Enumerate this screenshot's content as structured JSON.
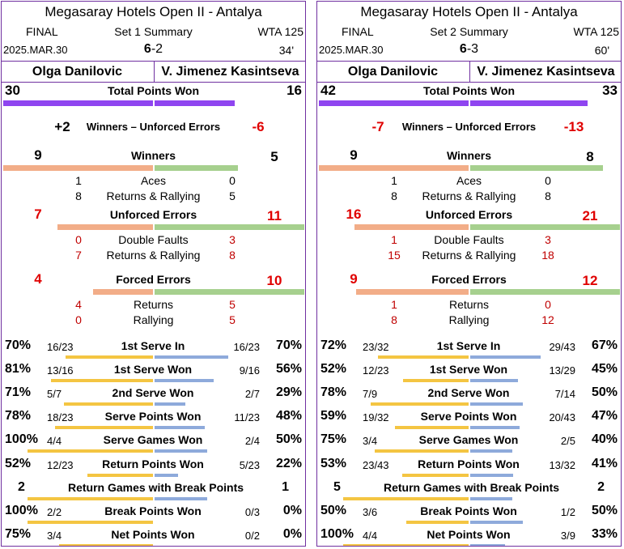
{
  "colors": {
    "purple": "#8f45f0",
    "orange": "#f2ad88",
    "green": "#a6d08e",
    "yellow": "#f4c542",
    "blue": "#8eaadb",
    "red": "#e00000",
    "border": "#7030a0"
  },
  "panels": [
    {
      "title": "Megasaray Hotels Open II - Antalya",
      "round": "FINAL",
      "set_label": "Set 1 Summary",
      "tour": "WTA 125",
      "date": "2025.MAR.30",
      "score_lead": "6",
      "score_rest": "-2",
      "duration": "34'",
      "p1": "Olga Danilovic",
      "p2": "V. Jimenez Kasintseva",
      "total": {
        "label": "Total Points Won",
        "p1": "30",
        "p2": "16",
        "p1n": 30,
        "p2n": 16
      },
      "diff": {
        "label": "Winners – Unforced Errors",
        "p1": "+2",
        "p2": "-6",
        "p1red": false,
        "p2red": true
      },
      "winners": {
        "label": "Winners",
        "p1": "9",
        "p2": "5",
        "p1n": 9,
        "p2n": 5,
        "subs": [
          {
            "label": "Aces",
            "p1": "1",
            "p2": "0"
          },
          {
            "label": "Returns & Rallying",
            "p1": "8",
            "p2": "5"
          }
        ]
      },
      "ue": {
        "label": "Unforced Errors",
        "p1": "7",
        "p2": "11",
        "p1n": 7,
        "p2n": 11,
        "subs": [
          {
            "label": "Double Faults",
            "p1": "0",
            "p2": "3"
          },
          {
            "label": "Returns & Rallying",
            "p1": "7",
            "p2": "8"
          }
        ]
      },
      "fe": {
        "label": "Forced Errors",
        "p1": "4",
        "p2": "10",
        "p1n": 4,
        "p2n": 10,
        "subs": [
          {
            "label": "Returns",
            "p1": "4",
            "p2": "5"
          },
          {
            "label": "Rallying",
            "p1": "0",
            "p2": "5"
          }
        ]
      },
      "stats": [
        {
          "label": "1st Serve In",
          "p1": "70%",
          "p1f": "16/23",
          "p2": "70%",
          "p2f": "16/23",
          "p1v": 0.7,
          "p2v": 0.7
        },
        {
          "label": "1st Serve Won",
          "p1": "81%",
          "p1f": "13/16",
          "p2": "56%",
          "p2f": "9/16",
          "p1v": 0.81,
          "p2v": 0.56
        },
        {
          "label": "2nd Serve Won",
          "p1": "71%",
          "p1f": "5/7",
          "p2": "29%",
          "p2f": "2/7",
          "p1v": 0.71,
          "p2v": 0.29
        },
        {
          "label": "Serve Points Won",
          "p1": "78%",
          "p1f": "18/23",
          "p2": "48%",
          "p2f": "11/23",
          "p1v": 0.78,
          "p2v": 0.48
        },
        {
          "label": "Serve Games Won",
          "p1": "100%",
          "p1f": "4/4",
          "p2": "50%",
          "p2f": "2/4",
          "p1v": 1.0,
          "p2v": 0.5
        },
        {
          "label": "Return Points Won",
          "p1": "52%",
          "p1f": "12/23",
          "p2": "22%",
          "p2f": "5/23",
          "p1v": 0.52,
          "p2v": 0.22
        },
        {
          "label": "Return Games with Break Points",
          "p1": "2",
          "p1f": "",
          "p2": "1",
          "p2f": "",
          "p1v": 1.0,
          "p2v": 0.5
        },
        {
          "label": "Break Points Won",
          "p1": "100%",
          "p1f": "2/2",
          "p2": "0%",
          "p2f": "0/3",
          "p1v": 1.0,
          "p2v": 0.0
        },
        {
          "label": "Net Points Won",
          "p1": "75%",
          "p1f": "3/4",
          "p2": "0%",
          "p2f": "0/2",
          "p1v": 0.75,
          "p2v": 0.0
        }
      ]
    },
    {
      "title": "Megasaray Hotels Open II - Antalya",
      "round": "FINAL",
      "set_label": "Set 2 Summary",
      "tour": "WTA 125",
      "date": "2025.MAR.30",
      "score_lead": "6",
      "score_rest": "-3",
      "duration": "60'",
      "p1": "Olga Danilovic",
      "p2": "V. Jimenez Kasintseva",
      "total": {
        "label": "Total Points Won",
        "p1": "42",
        "p2": "33",
        "p1n": 42,
        "p2n": 33
      },
      "diff": {
        "label": "Winners – Unforced Errors",
        "p1": "-7",
        "p2": "-13",
        "p1red": true,
        "p2red": true
      },
      "winners": {
        "label": "Winners",
        "p1": "9",
        "p2": "8",
        "p1n": 9,
        "p2n": 8,
        "subs": [
          {
            "label": "Aces",
            "p1": "1",
            "p2": "0"
          },
          {
            "label": "Returns & Rallying",
            "p1": "8",
            "p2": "8"
          }
        ]
      },
      "ue": {
        "label": "Unforced Errors",
        "p1": "16",
        "p2": "21",
        "p1n": 16,
        "p2n": 21,
        "subs": [
          {
            "label": "Double Faults",
            "p1": "1",
            "p2": "3"
          },
          {
            "label": "Returns & Rallying",
            "p1": "15",
            "p2": "18"
          }
        ]
      },
      "fe": {
        "label": "Forced Errors",
        "p1": "9",
        "p2": "12",
        "p1n": 9,
        "p2n": 12,
        "subs": [
          {
            "label": "Returns",
            "p1": "1",
            "p2": "0"
          },
          {
            "label": "Rallying",
            "p1": "8",
            "p2": "12"
          }
        ]
      },
      "stats": [
        {
          "label": "1st Serve In",
          "p1": "72%",
          "p1f": "23/32",
          "p2": "67%",
          "p2f": "29/43",
          "p1v": 0.72,
          "p2v": 0.67
        },
        {
          "label": "1st Serve Won",
          "p1": "52%",
          "p1f": "12/23",
          "p2": "45%",
          "p2f": "13/29",
          "p1v": 0.52,
          "p2v": 0.45
        },
        {
          "label": "2nd Serve Won",
          "p1": "78%",
          "p1f": "7/9",
          "p2": "50%",
          "p2f": "7/14",
          "p1v": 0.78,
          "p2v": 0.5
        },
        {
          "label": "Serve Points Won",
          "p1": "59%",
          "p1f": "19/32",
          "p2": "47%",
          "p2f": "20/43",
          "p1v": 0.59,
          "p2v": 0.47
        },
        {
          "label": "Serve Games Won",
          "p1": "75%",
          "p1f": "3/4",
          "p2": "40%",
          "p2f": "2/5",
          "p1v": 0.75,
          "p2v": 0.4
        },
        {
          "label": "Return Points Won",
          "p1": "53%",
          "p1f": "23/43",
          "p2": "41%",
          "p2f": "13/32",
          "p1v": 0.53,
          "p2v": 0.41
        },
        {
          "label": "Return Games with Break Points",
          "p1": "5",
          "p1f": "",
          "p2": "2",
          "p2f": "",
          "p1v": 1.0,
          "p2v": 0.4
        },
        {
          "label": "Break Points Won",
          "p1": "50%",
          "p1f": "3/6",
          "p2": "50%",
          "p2f": "1/2",
          "p1v": 0.5,
          "p2v": 0.5
        },
        {
          "label": "Net Points Won",
          "p1": "100%",
          "p1f": "4/4",
          "p2": "33%",
          "p2f": "3/9",
          "p1v": 1.0,
          "p2v": 0.33
        }
      ]
    }
  ],
  "chart_data": [
    {
      "type": "bar",
      "title": "Set 1 Summary",
      "categories": [
        "Total Points Won",
        "Winners",
        "Unforced Errors",
        "Forced Errors"
      ],
      "series": [
        {
          "name": "Olga Danilovic",
          "values": [
            30,
            9,
            7,
            4
          ]
        },
        {
          "name": "V. Jimenez Kasintseva",
          "values": [
            16,
            5,
            11,
            10
          ]
        }
      ]
    },
    {
      "type": "bar",
      "title": "Set 2 Summary",
      "categories": [
        "Total Points Won",
        "Winners",
        "Unforced Errors",
        "Forced Errors"
      ],
      "series": [
        {
          "name": "Olga Danilovic",
          "values": [
            42,
            9,
            16,
            9
          ]
        },
        {
          "name": "V. Jimenez Kasintseva",
          "values": [
            33,
            8,
            21,
            12
          ]
        }
      ]
    }
  ]
}
